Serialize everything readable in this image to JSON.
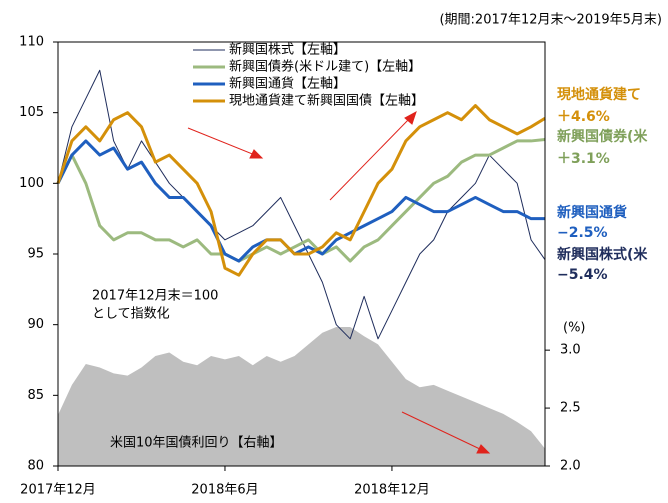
{
  "chart_data": {
    "type": "line",
    "subtitle": "(期間:2017年12月末～2019年5月末)",
    "note_lines": [
      "2017年12月末＝100",
      "として指数化"
    ],
    "y2_unit": "(%)",
    "categories": [
      "2017年12月",
      null,
      null,
      null,
      null,
      null,
      null,
      null,
      null,
      null,
      null,
      null,
      "2018年6月",
      null,
      null,
      null,
      null,
      null,
      null,
      null,
      null,
      null,
      null,
      null,
      "2018年12月",
      null,
      null,
      null,
      null,
      null,
      null,
      null,
      null,
      null,
      null,
      null
    ],
    "ylim": [
      80,
      110
    ],
    "yticks": [
      80,
      85,
      90,
      95,
      100,
      105,
      110
    ],
    "y2lim": [
      2.0,
      5.66
    ],
    "y2ticks": [
      {
        "value": 2.0,
        "label": "2.0"
      },
      {
        "value": 2.5,
        "label": "2.5"
      },
      {
        "value": 3.0,
        "label": "3.0"
      }
    ],
    "series": [
      {
        "name": "米国10年国債利回り【右軸】",
        "type": "area",
        "axis": "y2",
        "color": "#bfbfbf",
        "values": [
          2.44,
          2.7,
          2.88,
          2.85,
          2.8,
          2.78,
          2.85,
          2.95,
          2.98,
          2.9,
          2.87,
          2.95,
          2.92,
          2.95,
          2.87,
          2.95,
          2.9,
          2.95,
          3.05,
          3.15,
          3.2,
          3.2,
          3.12,
          3.05,
          2.9,
          2.75,
          2.68,
          2.7,
          2.65,
          2.6,
          2.55,
          2.5,
          2.45,
          2.38,
          2.3,
          2.15
        ]
      },
      {
        "name": "新興国株式【左軸】",
        "color": "#1f2d5c",
        "width": 1,
        "values": [
          100,
          104,
          106,
          108,
          103,
          101,
          103,
          101.5,
          100,
          99,
          98,
          97,
          96,
          96.5,
          97,
          98,
          99,
          97,
          95,
          93,
          90,
          89,
          92,
          89,
          91,
          93,
          95,
          96,
          98,
          99,
          100,
          102,
          101,
          100,
          96,
          94.6
        ]
      },
      {
        "name": "新興国債券(米ドル建て)【左軸】",
        "color": "#9cba7f",
        "width": 3,
        "values": [
          100,
          102,
          100,
          97,
          96,
          96.5,
          96.5,
          96,
          96,
          95.5,
          96,
          95,
          95,
          94.5,
          95,
          95.5,
          95,
          95.5,
          96,
          95,
          95.5,
          94.5,
          95.5,
          96,
          97,
          98,
          99,
          100,
          100.5,
          101.5,
          102,
          102,
          102.5,
          103,
          103,
          103.1
        ]
      },
      {
        "name": "新興国通貨【左軸】",
        "color": "#1f5fbf",
        "width": 3,
        "values": [
          100,
          102,
          103,
          102,
          102.5,
          101,
          101.5,
          100,
          99,
          99,
          98,
          97,
          95,
          94.5,
          95.5,
          96,
          96,
          95,
          95.5,
          95,
          96,
          96.5,
          97,
          97.5,
          98,
          99,
          98.5,
          98,
          98,
          98.5,
          99,
          98.5,
          98,
          98,
          97.5,
          97.5
        ]
      },
      {
        "name": "現地通貨建て新興国国債【左軸】",
        "color": "#d4900a",
        "width": 3,
        "values": [
          100,
          103,
          104,
          103,
          104.5,
          105,
          104,
          101.5,
          102,
          101,
          100,
          98,
          94,
          93.5,
          95,
          96,
          96,
          95,
          95,
          95.5,
          96.5,
          96,
          98,
          100,
          101,
          103,
          104,
          104.5,
          105,
          104.5,
          105.5,
          104.5,
          104,
          103.5,
          104,
          104.6
        ]
      }
    ],
    "end_labels": [
      {
        "text": "現地通貨建て",
        "change": "＋4.6%",
        "color": "#d4900a"
      },
      {
        "text": "新興国債券(米",
        "change": "＋3.1%",
        "color": "#7fa05a"
      },
      {
        "text": "新興国通貨",
        "change": "−2.5%",
        "color": "#1f5fbf"
      },
      {
        "text": "新興国株式(米",
        "change": "−5.4%",
        "color": "#1f2d5c"
      }
    ]
  }
}
